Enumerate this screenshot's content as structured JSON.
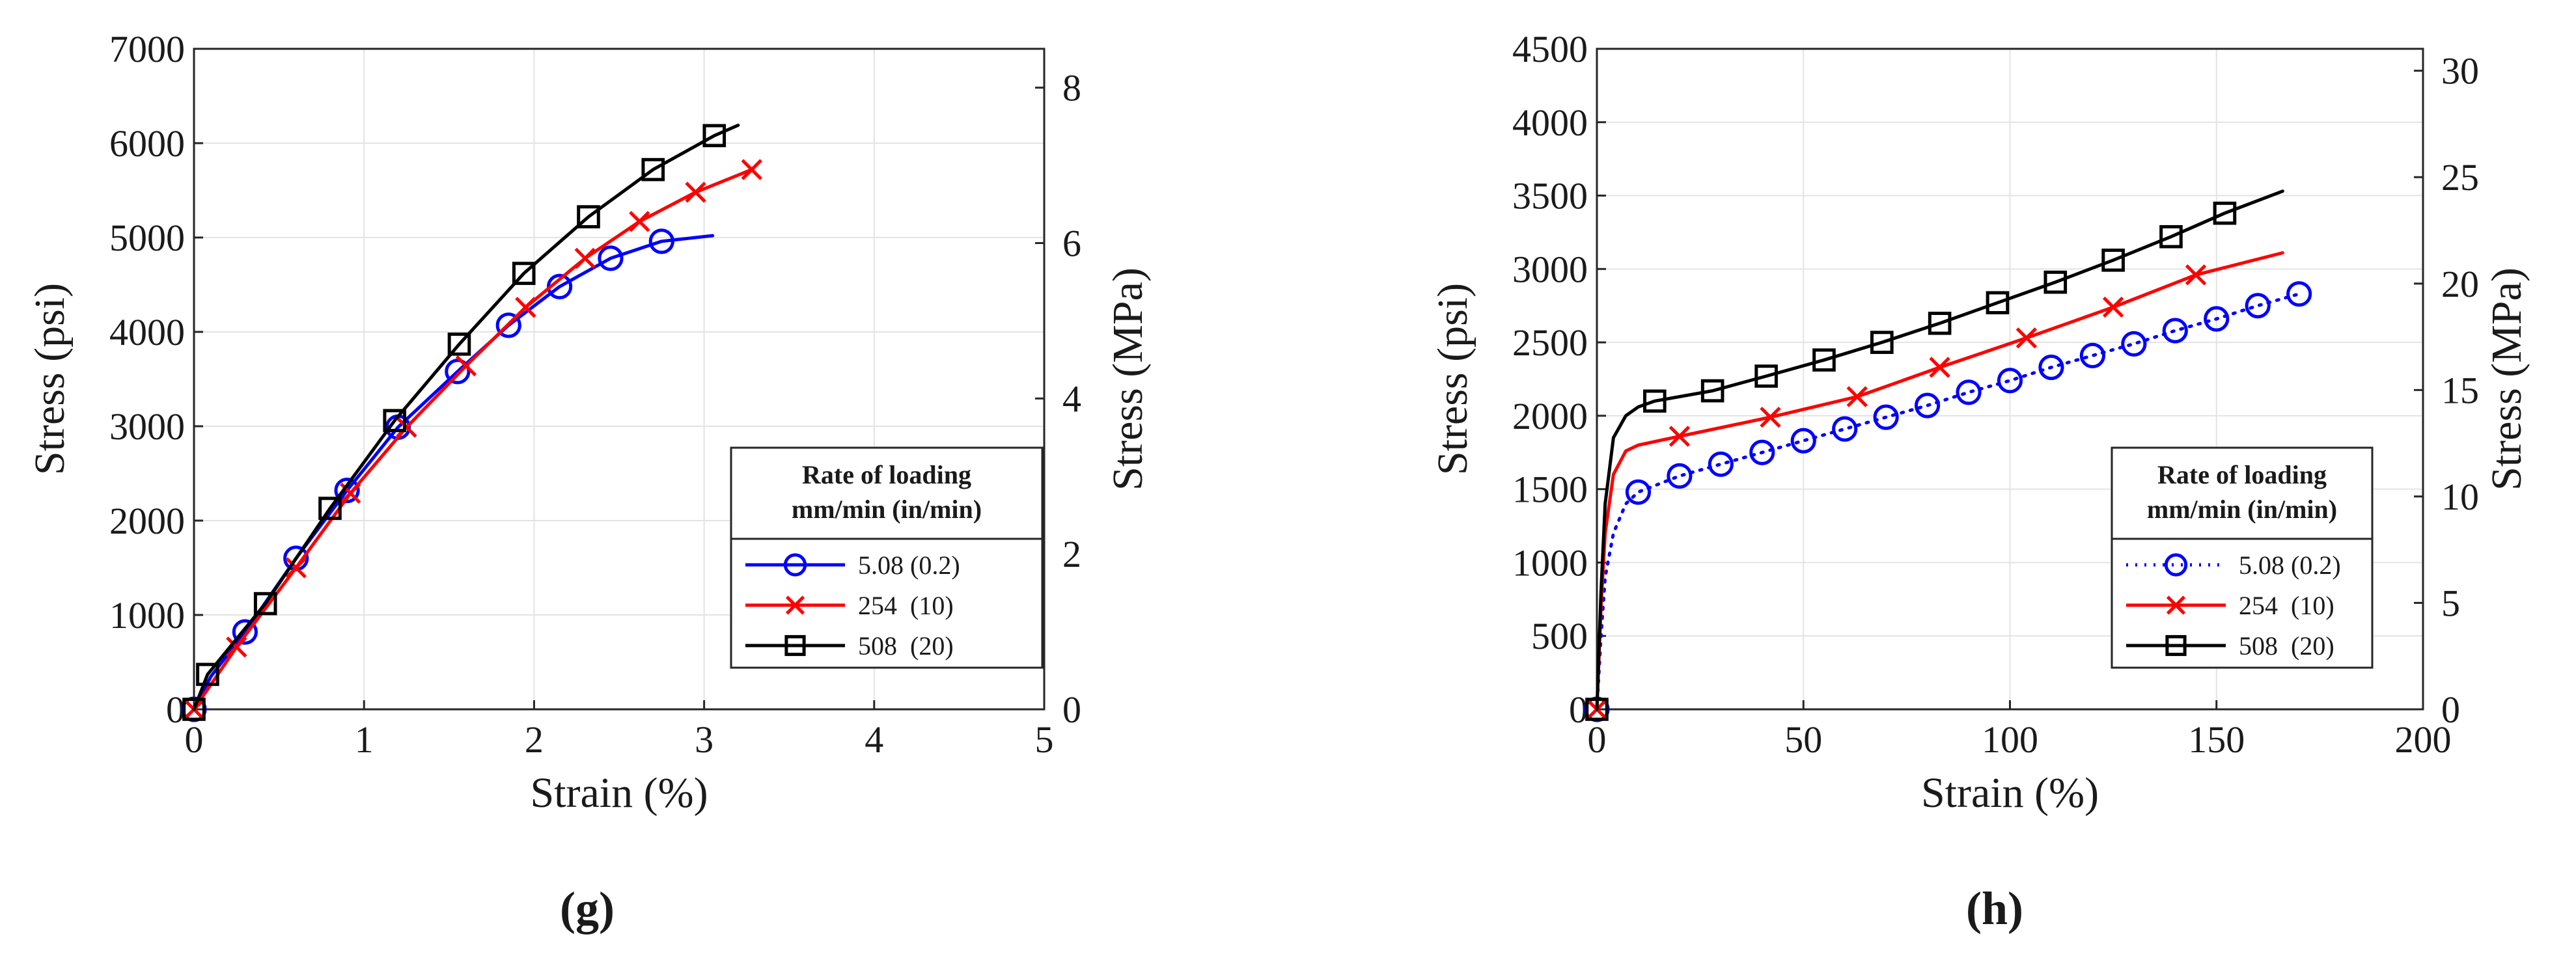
{
  "chart_data": [
    {
      "type": "line",
      "panel_label": "(g)",
      "xlabel": "Strain (%)",
      "ylabel": "Stress (psi)",
      "y2label": "Stress (MPa)",
      "xlim": [
        0,
        5
      ],
      "ylim": [
        0,
        7000
      ],
      "y2lim": [
        0,
        8.5
      ],
      "xticks": [
        "0",
        "1",
        "2",
        "3",
        "4",
        "5"
      ],
      "yticks": [
        "0",
        "1000",
        "2000",
        "3000",
        "4000",
        "5000",
        "6000",
        "7000"
      ],
      "y2ticks": [
        "0",
        "2",
        "4",
        "6",
        "8"
      ],
      "grid": true,
      "legend": {
        "title_line1": "Rate of loading",
        "title_line2": "mm/min (in/min)",
        "placement": "bottom-right",
        "entries": [
          "5.08 (0.2)",
          "254  (10)",
          "508  (20)"
        ]
      },
      "series": [
        {
          "name": "5.08 (0.2)",
          "color": "#0000ff",
          "marker": "circle",
          "dotted": false,
          "x": [
            0,
            0.1,
            0.3,
            0.6,
            0.9,
            1.2,
            1.55,
            1.85,
            2.15,
            2.45,
            2.75,
            3.05
          ],
          "y": [
            0,
            350,
            820,
            1600,
            2320,
            2990,
            3580,
            4070,
            4480,
            4780,
            4960,
            5020
          ],
          "marker_x": [
            0,
            0.3,
            0.6,
            0.9,
            1.2,
            1.55,
            1.85,
            2.15,
            2.45,
            2.75
          ],
          "marker_y": [
            0,
            820,
            1600,
            2320,
            2990,
            3580,
            4070,
            4480,
            4780,
            4960
          ]
        },
        {
          "name": "254  (10)",
          "color": "#ff0000",
          "marker": "x",
          "dotted": false,
          "x": [
            0,
            0.25,
            0.6,
            0.92,
            1.25,
            1.6,
            1.95,
            2.3,
            2.62,
            2.95,
            3.28
          ],
          "y": [
            0,
            660,
            1500,
            2290,
            2990,
            3640,
            4260,
            4780,
            5170,
            5480,
            5720
          ],
          "marker_x": [
            0,
            0.25,
            0.6,
            0.92,
            1.25,
            1.6,
            1.95,
            2.3,
            2.62,
            2.95,
            3.28
          ],
          "marker_y": [
            0,
            660,
            1500,
            2290,
            2990,
            3640,
            4260,
            4780,
            5170,
            5480,
            5720
          ]
        },
        {
          "name": "508  (20)",
          "color": "#000000",
          "marker": "square",
          "dotted": false,
          "x": [
            0,
            0.08,
            0.42,
            0.8,
            1.18,
            1.56,
            1.94,
            2.32,
            2.7,
            3.06,
            3.2
          ],
          "y": [
            0,
            370,
            1120,
            2130,
            3060,
            3870,
            4620,
            5220,
            5720,
            6080,
            6190
          ],
          "marker_x": [
            0,
            0.08,
            0.42,
            0.8,
            1.18,
            1.56,
            1.94,
            2.32,
            2.7,
            3.06
          ],
          "marker_y": [
            0,
            370,
            1120,
            2130,
            3060,
            3870,
            4620,
            5220,
            5720,
            6080
          ]
        }
      ]
    },
    {
      "type": "line",
      "panel_label": "(h)",
      "xlabel": "Strain (%)",
      "ylabel": "Stress (psi)",
      "y2label": "Stress (MPa)",
      "xlim": [
        0,
        200
      ],
      "ylim": [
        0,
        4500
      ],
      "y2lim": [
        0,
        31.03
      ],
      "xticks": [
        "0",
        "50",
        "100",
        "150",
        "200"
      ],
      "yticks": [
        "0",
        "500",
        "1000",
        "1500",
        "2000",
        "2500",
        "3000",
        "3500",
        "4000",
        "4500"
      ],
      "y2ticks": [
        "0",
        "5",
        "10",
        "15",
        "20",
        "25",
        "30"
      ],
      "grid": true,
      "legend": {
        "title_line1": "Rate of loading",
        "title_line2": "mm/min (in/min)",
        "placement": "bottom-right",
        "entries": [
          "5.08 (0.2)",
          "254  (10)",
          "508  (20)"
        ]
      },
      "series": [
        {
          "name": "5.08 (0.2)",
          "color": "#0000ff",
          "marker": "circle",
          "dotted": true,
          "x": [
            0,
            1,
            2,
            4,
            7,
            10,
            20,
            30,
            40,
            50,
            60,
            70,
            80,
            90,
            100,
            110,
            120,
            130,
            140,
            150,
            160,
            170
          ],
          "y": [
            0,
            500,
            900,
            1200,
            1400,
            1480,
            1590,
            1670,
            1750,
            1830,
            1910,
            1990,
            2070,
            2160,
            2240,
            2330,
            2410,
            2490,
            2580,
            2660,
            2750,
            2830
          ],
          "marker_x": [
            0,
            10,
            20,
            30,
            40,
            50,
            60,
            70,
            80,
            90,
            100,
            110,
            120,
            130,
            140,
            150,
            160,
            170
          ],
          "marker_y": [
            0,
            1480,
            1590,
            1670,
            1750,
            1830,
            1910,
            1990,
            2070,
            2160,
            2240,
            2330,
            2410,
            2490,
            2580,
            2660,
            2750,
            2830
          ]
        },
        {
          "name": "254  (10)",
          "color": "#ff0000",
          "marker": "x",
          "dotted": false,
          "x": [
            0,
            1,
            2,
            4,
            7,
            10,
            20,
            42,
            63,
            83,
            104,
            125,
            145,
            166
          ],
          "y": [
            0,
            700,
            1200,
            1600,
            1760,
            1800,
            1860,
            1990,
            2130,
            2330,
            2530,
            2740,
            2960,
            3110
          ],
          "marker_x": [
            0,
            20,
            42,
            63,
            83,
            104,
            125,
            145
          ],
          "marker_y": [
            0,
            1860,
            1990,
            2130,
            2330,
            2530,
            2740,
            2960
          ]
        },
        {
          "name": "508  (20)",
          "color": "#000000",
          "marker": "square",
          "dotted": false,
          "x": [
            0,
            1,
            2,
            4,
            7,
            10,
            14,
            28,
            41,
            55,
            69,
            83,
            97,
            111,
            125,
            139,
            152,
            166
          ],
          "y": [
            0,
            800,
            1400,
            1850,
            2000,
            2060,
            2100,
            2170,
            2270,
            2380,
            2500,
            2630,
            2770,
            2910,
            3060,
            3220,
            3380,
            3530
          ],
          "marker_x": [
            0,
            14,
            28,
            41,
            55,
            69,
            83,
            97,
            111,
            125,
            139,
            152
          ],
          "marker_y": [
            0,
            2100,
            2170,
            2270,
            2380,
            2500,
            2630,
            2770,
            2910,
            3060,
            3220,
            3380
          ]
        }
      ]
    }
  ]
}
